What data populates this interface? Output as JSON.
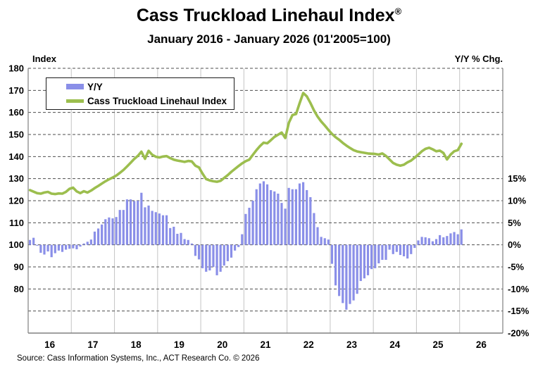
{
  "header": {
    "title": "Cass Truckload Linehaul Index",
    "registered_mark": "®",
    "subtitle": "January 2016 - January 2026 (01'2005=100)",
    "left_axis_title": "Index",
    "right_axis_title": "Y/Y % Chg."
  },
  "legend": {
    "items": [
      {
        "label": "Y/Y",
        "color": "#8A8FE8",
        "kind": "bar"
      },
      {
        "label": "Cass Truckload Linehaul Index",
        "color": "#9CBE4E",
        "kind": "line"
      }
    ]
  },
  "footer": {
    "source": "Source: Cass Information Systems, Inc., ACT Research Co. © 2026"
  },
  "colors": {
    "bar": "#8A8FE8",
    "line": "#9CBE4E",
    "h_gridline": "#4d4d4d",
    "v_gridline": "#c9c9c9",
    "plot_border": "#808080"
  },
  "chart_data": {
    "type": "combo",
    "x": {
      "interval": "month",
      "start": "2016-01",
      "end": "2026-01",
      "years": [
        2016,
        2017,
        2018,
        2019,
        2020,
        2021,
        2022,
        2023,
        2024,
        2025,
        2026
      ],
      "tick_labels": [
        "16",
        "17",
        "18",
        "19",
        "20",
        "21",
        "22",
        "23",
        "24",
        "25",
        "26"
      ]
    },
    "left_axis": {
      "label": "Index",
      "min": 60,
      "max": 180,
      "gridline_step": 10,
      "tick_values": [
        180,
        170,
        160,
        150,
        140,
        130,
        120,
        110,
        100,
        90,
        80
      ],
      "tick_labels": [
        "180",
        "170",
        "160",
        "150",
        "140",
        "130",
        "120",
        "110",
        "100",
        "90",
        "80"
      ]
    },
    "right_axis": {
      "label": "Y/Y % Chg.",
      "min": -20,
      "max": 40,
      "note": "pct aligned so that index = 100 + 2*pct",
      "tick_values_pct": [
        15,
        10,
        5,
        0,
        -5,
        -10,
        -15,
        -20
      ],
      "tick_labels": [
        "15%",
        "10%",
        "5%",
        "0%",
        "-5%",
        "-10%",
        "-15%",
        "-20%"
      ]
    },
    "series": [
      {
        "name": "Y/Y",
        "type": "bar",
        "axis": "right",
        "unit": "%",
        "color": "#8A8FE8",
        "values": [
          1.1,
          1.6,
          -0.2,
          -1.8,
          -2.2,
          -1.5,
          -2.8,
          -1.9,
          -1.3,
          -1.6,
          -1.1,
          -0.9,
          -0.8,
          -1.0,
          -0.4,
          0.3,
          0.7,
          1.2,
          3.0,
          3.7,
          4.6,
          5.8,
          6.2,
          6.0,
          6.3,
          7.9,
          7.9,
          10.3,
          10.3,
          9.9,
          10.0,
          11.8,
          8.5,
          8.9,
          7.7,
          7.4,
          7.1,
          6.7,
          6.7,
          3.8,
          4.1,
          2.5,
          2.7,
          1.3,
          1.1,
          0.3,
          -2.5,
          -3.3,
          -5.3,
          -6.1,
          -5.8,
          -5.0,
          -6.9,
          -6.1,
          -4.7,
          -3.7,
          -2.9,
          -1.3,
          -0.5,
          2.4,
          7.0,
          8.4,
          10.0,
          12.6,
          13.9,
          14.4,
          13.7,
          12.4,
          12.1,
          11.6,
          9.5,
          8.2,
          12.9,
          12.6,
          12.6,
          13.9,
          14.2,
          12.4,
          10.8,
          7.2,
          4.0,
          1.8,
          1.5,
          1.2,
          -4.3,
          -9.2,
          -11.6,
          -13.2,
          -14.7,
          -13.4,
          -12.6,
          -11.1,
          -8.2,
          -7.6,
          -6.9,
          -5.5,
          -5.3,
          -4.2,
          -3.4,
          -3.4,
          -1.1,
          -2.1,
          -1.6,
          -2.3,
          -2.6,
          -3.1,
          -2.1,
          -0.7,
          1.0,
          1.8,
          1.7,
          1.5,
          0.8,
          1.3,
          2.2,
          1.7,
          2.0,
          2.6,
          2.9,
          2.4,
          3.5
        ]
      },
      {
        "name": "Cass Truckload Linehaul Index",
        "type": "line",
        "axis": "left",
        "color": "#9CBE4E",
        "values": [
          124.8,
          124.1,
          123.4,
          123.2,
          123.7,
          124.0,
          123.2,
          123.0,
          123.3,
          123.2,
          124.0,
          125.4,
          125.9,
          124.2,
          123.4,
          124.3,
          123.7,
          124.6,
          125.7,
          126.7,
          127.8,
          128.8,
          129.7,
          130.5,
          131.4,
          132.6,
          133.9,
          135.5,
          137.2,
          138.9,
          140.3,
          142.2,
          139.0,
          142.6,
          140.8,
          139.9,
          139.6,
          140.0,
          140.2,
          139.3,
          138.6,
          138.2,
          137.9,
          137.6,
          138.0,
          137.8,
          135.9,
          135.1,
          132.3,
          129.8,
          129.2,
          128.8,
          128.6,
          129.0,
          130.3,
          131.6,
          133.1,
          134.4,
          135.7,
          136.9,
          137.9,
          138.6,
          140.8,
          142.9,
          144.8,
          146.3,
          146.0,
          147.4,
          148.9,
          149.9,
          150.9,
          148.4,
          155.3,
          158.8,
          159.3,
          164.2,
          168.8,
          167.3,
          164.3,
          160.9,
          158.1,
          155.9,
          154.1,
          152.1,
          150.3,
          148.8,
          147.6,
          146.2,
          145.0,
          143.9,
          142.9,
          142.3,
          142.0,
          141.7,
          141.4,
          141.3,
          141.2,
          140.9,
          141.4,
          140.3,
          138.7,
          137.1,
          136.3,
          135.9,
          136.3,
          137.4,
          138.2,
          139.5,
          140.9,
          142.4,
          143.5,
          144.0,
          143.3,
          142.4,
          142.7,
          141.6,
          138.7,
          140.9,
          142.4,
          142.9,
          145.8
        ]
      }
    ]
  }
}
